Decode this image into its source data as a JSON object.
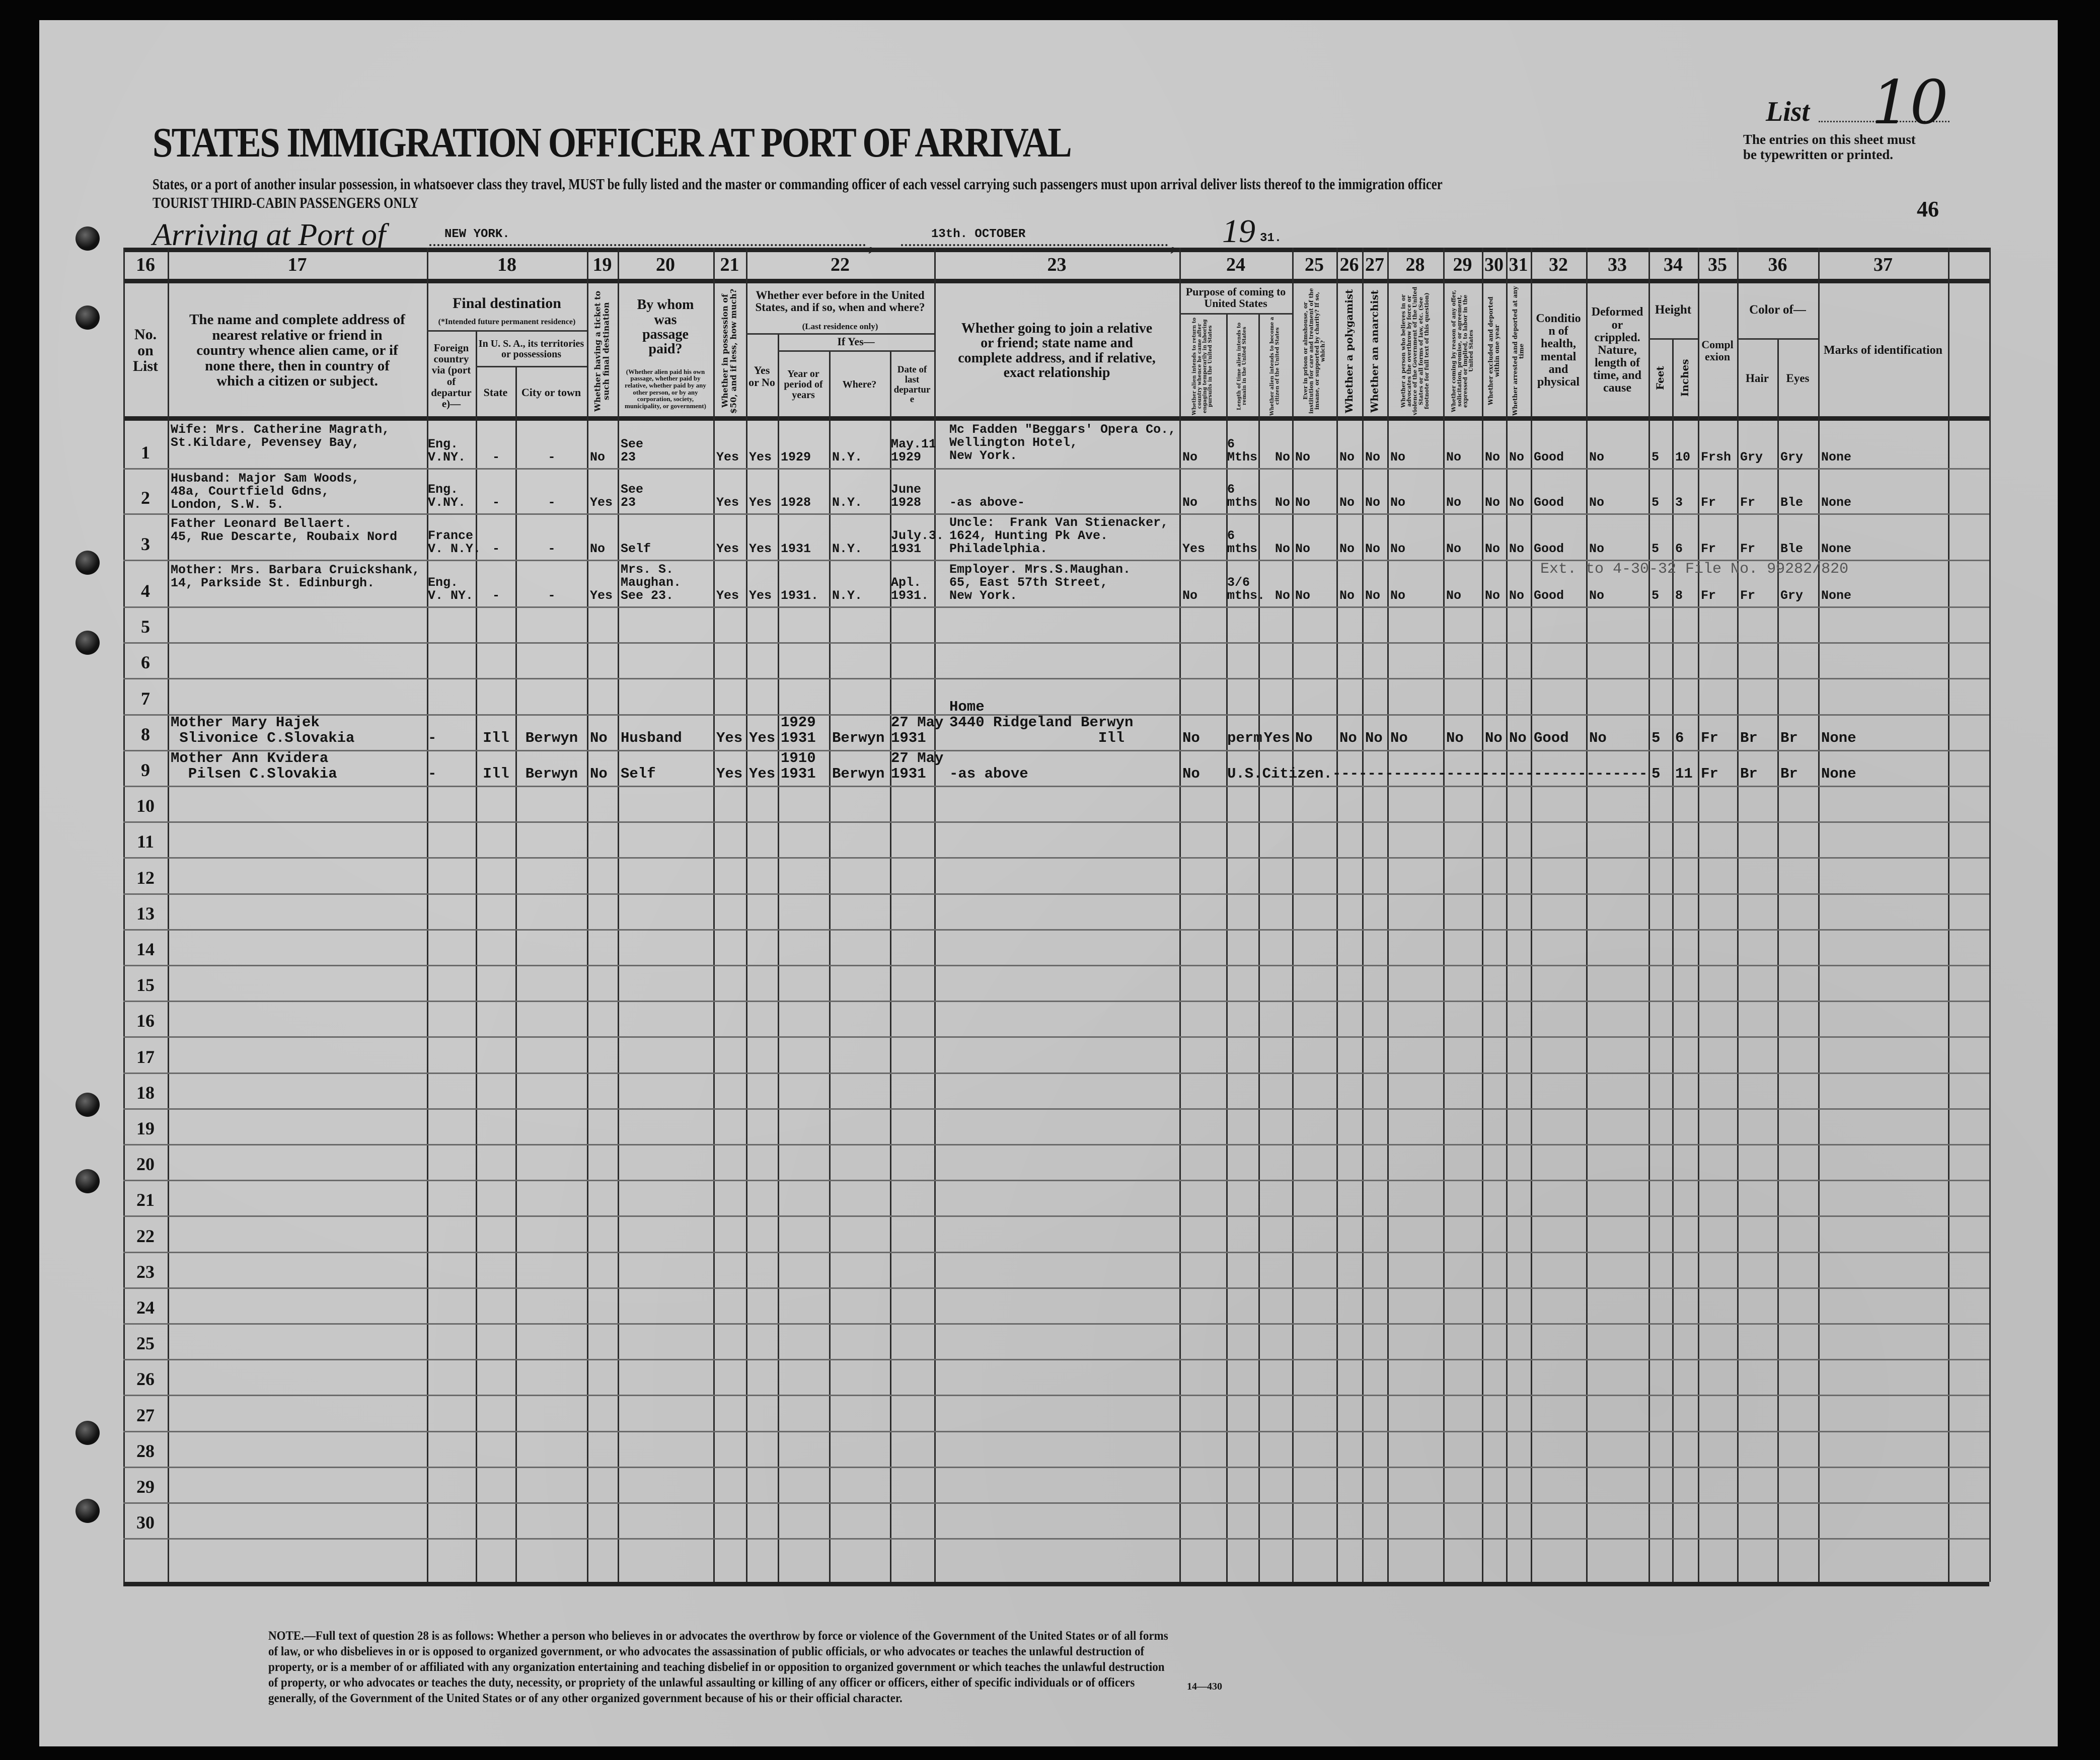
{
  "document": {
    "title": "STATES IMMIGRATION OFFICER AT PORT OF ARRIVAL",
    "subtitle_line1": "States, or a port of another insular possession, in whatsoever class they travel, MUST be fully listed and the master or commanding officer of each vessel carrying such passengers must upon arrival deliver lists thereof to the immigration officer",
    "subtitle_line2": "TOURIST THIRD-CABIN PASSENGERS ONLY",
    "arriving_label": "Arriving at Port of",
    "port": "NEW YORK.",
    "date": "13th. OCTOBER",
    "year_prefix": "19",
    "year_suffix": "31.",
    "list_label": "List",
    "list_number": "10",
    "entries_notice_1": "The entries on this sheet must",
    "entries_notice_2": "be typewritten or printed.",
    "sheet_number": "46",
    "footnote": "NOTE.—Full text of question 28 is as follows: Whether a person who believes in or advocates the overthrow by force or violence of the Government of the United States or of all forms of law, or who disbelieves in or is opposed to organized government, or who advocates the assassination of public officials, or who advocates or teaches the unlawful destruction of property, or is a member of or affiliated with any organization entertaining and teaching disbelief in or opposition to organized government or which teaches the unlawful destruction of property, or who advocates or teaches the duty, necessity, or propriety of the unlawful assaulting or killing of any officer or officers, either of specific individuals or of officers generally, of the Government of the United States or of any other organized government because of his or their official character.",
    "form_number": "14—430"
  },
  "header": {
    "col_numbers": [
      "16",
      "17",
      "18",
      "19",
      "20",
      "21",
      "22",
      "23",
      "24",
      "25",
      "26",
      "27",
      "28",
      "29",
      "30",
      "31",
      "32",
      "33",
      "34",
      "35",
      "36",
      "37"
    ],
    "labels": {
      "no_on_list": "No. on List",
      "relative": "The name and complete address of nearest relative or friend in country whence alien came, or if none there, then in country of which a citizen or subject.",
      "final_dest": "Final destination",
      "final_dest_note": "(*Intended future permanent residence)",
      "foreign": "Foreign country via (port of departure)—",
      "usa": "In U. S. A., its territories or possessions",
      "state": "State",
      "city": "City or town",
      "ticket": "Whether having a ticket to such final destination",
      "paid_by": "By whom was passage paid?",
      "paid_by_note": "(Whether alien paid his own passage, whether paid by relative, whether paid by any other person, or by any corporation, society, municipality, or government)",
      "money": "Whether in possession of $50, and if less, how much?",
      "before": "Whether ever before in the United States, and if so, when and where?",
      "before_note": "(Last residence only)",
      "yes_no": "Yes or No",
      "if_yes": "If Yes—",
      "year": "Year or period of years",
      "where": "Where?",
      "departed": "Date of last departure",
      "join": "Whether going to join a relative or friend; state name and complete address, and if relative, exact relationship",
      "purpose": "Purpose of coming to United States",
      "return": "Whether alien intends to return to country whence he came after engaging temporarily in laboring pursuits in the United States",
      "length": "Length of time alien intends to remain in the United States",
      "citizen": "Whether alien intends to become a citizen of the United States",
      "prison": "Ever in prison or almshouse, or institution for care and treatment of the insane, or supported by charity? If so, which?",
      "polygamist": "Whether a polygamist",
      "anarchist": "Whether an anarchist",
      "q28": "Whether a person who believes in or advocates the overthrow by force or violence of the Government of the United States or all forms of law, etc. (See footnote for full text of this question)",
      "contract": "Whether coming by reason of any offer, solicitation, promise, or agreement, expressed or implied, to labor in the United States",
      "excluded": "Whether excluded and deported within one year",
      "arrested": "Whether arrested and deported at any time",
      "health": "Condition of health, mental and physical",
      "deformed": "Deformed or crippled. Nature, length of time, and cause",
      "height": "Height",
      "feet": "Feet",
      "inches": "Inches",
      "complexion": "Complexion",
      "color_of": "Color of—",
      "hair": "Hair",
      "eyes": "Eyes",
      "marks": "Marks of identification"
    }
  },
  "rows": [
    {
      "no": "1",
      "cells": {
        "relative": "Wife: Mrs. Catherine Magrath,\nSt.Kildare, Pevensey Bay,",
        "foreign": "Eng.\nV.NY.",
        "state": "-",
        "city": "-",
        "ticket": "No",
        "paid_by": "See\n23",
        "money": "Yes",
        "before": "Yes",
        "year": "1929",
        "where": "N.Y.",
        "departed": "May.11\n1929",
        "join": "Mc Fadden \"Beggars' Opera Co.,\nWellington Hotel,\nNew York.",
        "return": "No",
        "length": "6\nMths",
        "citizen": "No",
        "prison": "No",
        "polygamist": "No",
        "anarchist": "No",
        "q28": "No",
        "contract": "No",
        "excluded": "No",
        "arrested": "No",
        "health": "Good",
        "deformed": "No",
        "feet": "5",
        "inches": "10",
        "complexion": "Frsh",
        "hair": "Gry",
        "eyes": "Gry",
        "marks": "None"
      }
    },
    {
      "no": "2",
      "cells": {
        "relative": "Husband: Major Sam Woods,\n48a, Courtfield Gdns,\nLondon, S.W. 5.",
        "foreign": "Eng.\nV.NY.",
        "state": "-",
        "city": "-",
        "ticket": "Yes",
        "paid_by": "See\n23",
        "money": "Yes",
        "before": "Yes",
        "year": "1928",
        "where": "N.Y.",
        "departed": "June\n1928",
        "join": "-as above-",
        "return": "No",
        "length": "6\nmths",
        "citizen": "No",
        "prison": "No",
        "polygamist": "No",
        "anarchist": "No",
        "q28": "No",
        "contract": "No",
        "excluded": "No",
        "arrested": "No",
        "health": "Good",
        "deformed": "No",
        "feet": "5",
        "inches": "3",
        "complexion": "Fr",
        "hair": "Fr",
        "eyes": "Ble",
        "marks": "None"
      }
    },
    {
      "no": "3",
      "cells": {
        "relative": "Father Leonard Bellaert.\n45, Rue Descarte, Roubaix Nord",
        "foreign": "France\nV. N.Y.",
        "state": "-",
        "city": "-",
        "ticket": "No",
        "paid_by": "Self",
        "money": "Yes",
        "before": "Yes",
        "year": "1931",
        "where": "N.Y.",
        "departed": "July.3.\n1931",
        "join": "Uncle:  Frank Van Stienacker,\n1624, Hunting Pk Ave.\nPhiladelphia.",
        "return": "Yes",
        "length": "6\nmths",
        "citizen": "No",
        "prison": "No",
        "polygamist": "No",
        "anarchist": "No",
        "q28": "No",
        "contract": "No",
        "excluded": "No",
        "arrested": "No",
        "health": "Good",
        "deformed": "No",
        "feet": "5",
        "inches": "6",
        "complexion": "Fr",
        "hair": "Fr",
        "eyes": "Ble",
        "marks": "None"
      }
    },
    {
      "no": "4",
      "cells": {
        "relative": "Mother: Mrs. Barbara Cruickshank,\n14, Parkside St. Edinburgh.",
        "foreign": "Eng.\nV. NY.",
        "state": "-",
        "city": "-",
        "ticket": "Yes",
        "paid_by": "Mrs. S.\nMaughan.\nSee 23.",
        "money": "Yes",
        "before": "Yes",
        "year": "1931.",
        "where": "N.Y.",
        "departed": "Apl.\n1931.",
        "join": "Employer. Mrs.S.Maughan.\n65, East 57th Street,\nNew York.",
        "return": "No",
        "length": "3/6\nmths.",
        "citizen": "No",
        "prison": "No",
        "polygamist": "No",
        "anarchist": "No",
        "q28": "No",
        "contract": "No",
        "excluded": "No",
        "arrested": "No",
        "health": "Good",
        "deformed": "No",
        "feet": "5",
        "inches": "8",
        "complexion": "Fr",
        "hair": "Fr",
        "eyes": "Gry",
        "marks": "None"
      },
      "annotation": "Ext. to 4-30-32   File No. 99282/820"
    },
    {
      "no": "5"
    },
    {
      "no": "6"
    },
    {
      "no": "7"
    },
    {
      "no": "8",
      "cells": {
        "relative": "Mother Mary Hajek\n Slivonice C.Slovakia",
        "foreign": "-",
        "state": "Ill",
        "city": "Berwyn",
        "ticket": "No",
        "paid_by": "Husband",
        "money": "Yes",
        "before": "Yes",
        "year": "1929\n1931",
        "where": "Berwyn",
        "departed": "27 May\n1931",
        "join": "Home\n3440 Ridgeland Berwyn\n                 Ill",
        "return": "No",
        "length": "perm",
        "citizen": "Yes",
        "prison": "No",
        "polygamist": "No",
        "anarchist": "No",
        "q28": "No",
        "contract": "No",
        "excluded": "No",
        "arrested": "No",
        "health": "Good",
        "deformed": "No",
        "feet": "5",
        "inches": "6",
        "complexion": "Fr",
        "hair": "Br",
        "eyes": "Br",
        "marks": "None"
      }
    },
    {
      "no": "9",
      "cells": {
        "relative": "Mother Ann Kvidera\n  Pilsen C.Slovakia",
        "foreign": "-",
        "state": "Ill",
        "city": "Berwyn",
        "ticket": "No",
        "paid_by": "Self",
        "money": "Yes",
        "before": "Yes",
        "year": "1910\n1931",
        "where": "Berwyn",
        "departed": "27 May\n1931",
        "join": "-as above",
        "return": "No",
        "length": "U.S.Citizen.------------------------------------",
        "feet": "5",
        "inches": "11",
        "complexion": "Fr",
        "hair": "Br",
        "eyes": "Br",
        "marks": "None"
      }
    },
    {
      "no": "10"
    },
    {
      "no": "11"
    },
    {
      "no": "12"
    },
    {
      "no": "13"
    },
    {
      "no": "14"
    },
    {
      "no": "15"
    },
    {
      "no": "16"
    },
    {
      "no": "17"
    },
    {
      "no": "18"
    },
    {
      "no": "19"
    },
    {
      "no": "20"
    },
    {
      "no": "21"
    },
    {
      "no": "22"
    },
    {
      "no": "23"
    },
    {
      "no": "24"
    },
    {
      "no": "25"
    },
    {
      "no": "26"
    },
    {
      "no": "27"
    },
    {
      "no": "28"
    },
    {
      "no": "29"
    },
    {
      "no": "30"
    }
  ],
  "colors": {
    "paper": "#c6c6c6",
    "ink": "#141414",
    "background": "#050505"
  }
}
